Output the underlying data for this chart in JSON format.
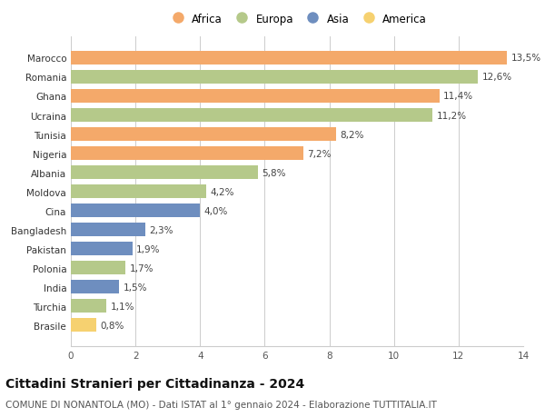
{
  "countries": [
    "Marocco",
    "Romania",
    "Ghana",
    "Ucraina",
    "Tunisia",
    "Nigeria",
    "Albania",
    "Moldova",
    "Cina",
    "Bangladesh",
    "Pakistan",
    "Polonia",
    "India",
    "Turchia",
    "Brasile"
  ],
  "values": [
    13.5,
    12.6,
    11.4,
    11.2,
    8.2,
    7.2,
    5.8,
    4.2,
    4.0,
    2.3,
    1.9,
    1.7,
    1.5,
    1.1,
    0.8
  ],
  "labels": [
    "13,5%",
    "12,6%",
    "11,4%",
    "11,2%",
    "8,2%",
    "7,2%",
    "5,8%",
    "4,2%",
    "4,0%",
    "2,3%",
    "1,9%",
    "1,7%",
    "1,5%",
    "1,1%",
    "0,8%"
  ],
  "continents": [
    "Africa",
    "Europa",
    "Africa",
    "Europa",
    "Africa",
    "Africa",
    "Europa",
    "Europa",
    "Asia",
    "Asia",
    "Asia",
    "Europa",
    "Asia",
    "Europa",
    "America"
  ],
  "colors": {
    "Africa": "#F4A96A",
    "Europa": "#B5C98A",
    "Asia": "#6E8EBF",
    "America": "#F6D170"
  },
  "legend_order": [
    "Africa",
    "Europa",
    "Asia",
    "America"
  ],
  "xlim": [
    0,
    14
  ],
  "xticks": [
    0,
    2,
    4,
    6,
    8,
    10,
    12,
    14
  ],
  "title": "Cittadini Stranieri per Cittadinanza - 2024",
  "subtitle": "COMUNE DI NONANTOLA (MO) - Dati ISTAT al 1° gennaio 2024 - Elaborazione TUTTITALIA.IT",
  "bg_color": "#ffffff",
  "grid_color": "#cccccc",
  "bar_height": 0.72,
  "title_fontsize": 10,
  "subtitle_fontsize": 7.5,
  "label_fontsize": 7.5,
  "tick_fontsize": 7.5,
  "legend_fontsize": 8.5
}
